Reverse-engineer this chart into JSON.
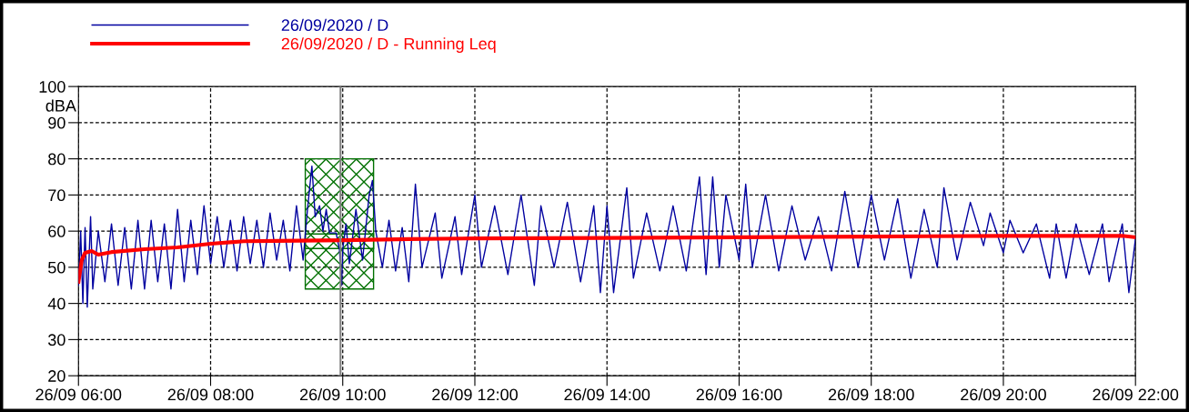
{
  "chart_data": {
    "type": "line",
    "ylabel": "dBA",
    "xlim": [
      "2020-09-26T06:00",
      "2020-09-26T22:00"
    ],
    "ylim": [
      20,
      100
    ],
    "xticks": [
      {
        "value": "2020-09-26T06:00",
        "label": "26/09 06:00"
      },
      {
        "value": "2020-09-26T08:00",
        "label": "26/09 08:00"
      },
      {
        "value": "2020-09-26T10:00",
        "label": "26/09 10:00"
      },
      {
        "value": "2020-09-26T12:00",
        "label": "26/09 12:00"
      },
      {
        "value": "2020-09-26T14:00",
        "label": "26/09 14:00"
      },
      {
        "value": "2020-09-26T16:00",
        "label": "26/09 16:00"
      },
      {
        "value": "2020-09-26T18:00",
        "label": "26/09 18:00"
      },
      {
        "value": "2020-09-26T20:00",
        "label": "26/09 20:00"
      },
      {
        "value": "2020-09-26T22:00",
        "label": "26/09 22:00"
      }
    ],
    "yticks": [
      20,
      30,
      40,
      50,
      60,
      70,
      80,
      90,
      100
    ],
    "grid": true,
    "legend": "top left",
    "marker": "none",
    "line_style": "solid",
    "series": [
      {
        "name": "26/09/2020 / D",
        "color": "#0000a0",
        "x": [
          "2020-09-26T06:00",
          "2020-09-26T06:02",
          "2020-09-26T06:04",
          "2020-09-26T06:06",
          "2020-09-26T06:08",
          "2020-09-26T06:11",
          "2020-09-26T06:13",
          "2020-09-26T06:18",
          "2020-09-26T06:24",
          "2020-09-26T06:30",
          "2020-09-26T06:36",
          "2020-09-26T06:42",
          "2020-09-26T06:48",
          "2020-09-26T06:54",
          "2020-09-26T07:00",
          "2020-09-26T07:06",
          "2020-09-26T07:12",
          "2020-09-26T07:18",
          "2020-09-26T07:24",
          "2020-09-26T07:30",
          "2020-09-26T07:36",
          "2020-09-26T07:42",
          "2020-09-26T07:48",
          "2020-09-26T07:54",
          "2020-09-26T08:00",
          "2020-09-26T08:06",
          "2020-09-26T08:12",
          "2020-09-26T08:18",
          "2020-09-26T08:24",
          "2020-09-26T08:30",
          "2020-09-26T08:36",
          "2020-09-26T08:42",
          "2020-09-26T08:48",
          "2020-09-26T08:54",
          "2020-09-26T09:00",
          "2020-09-26T09:06",
          "2020-09-26T09:12",
          "2020-09-26T09:18",
          "2020-09-26T09:24",
          "2020-09-26T09:28",
          "2020-09-26T09:32",
          "2020-09-26T09:35",
          "2020-09-26T09:39",
          "2020-09-26T09:42",
          "2020-09-26T09:45",
          "2020-09-26T09:48",
          "2020-09-26T09:54",
          "2020-09-26T09:57",
          "2020-09-26T09:59",
          "2020-09-26T10:00",
          "2020-09-26T10:03",
          "2020-09-26T10:06",
          "2020-09-26T10:12",
          "2020-09-26T10:18",
          "2020-09-26T10:24",
          "2020-09-26T10:27",
          "2020-09-26T10:30",
          "2020-09-26T10:36",
          "2020-09-26T10:42",
          "2020-09-26T10:48",
          "2020-09-26T10:54",
          "2020-09-26T11:00",
          "2020-09-26T11:06",
          "2020-09-26T11:12",
          "2020-09-26T11:24",
          "2020-09-26T11:30",
          "2020-09-26T11:42",
          "2020-09-26T11:48",
          "2020-09-26T12:00",
          "2020-09-26T12:06",
          "2020-09-26T12:18",
          "2020-09-26T12:30",
          "2020-09-26T12:42",
          "2020-09-26T12:54",
          "2020-09-26T13:00",
          "2020-09-26T13:12",
          "2020-09-26T13:24",
          "2020-09-26T13:36",
          "2020-09-26T13:48",
          "2020-09-26T13:54",
          "2020-09-26T14:00",
          "2020-09-26T14:06",
          "2020-09-26T14:18",
          "2020-09-26T14:24",
          "2020-09-26T14:36",
          "2020-09-26T14:48",
          "2020-09-26T15:00",
          "2020-09-26T15:12",
          "2020-09-26T15:24",
          "2020-09-26T15:30",
          "2020-09-26T15:36",
          "2020-09-26T15:42",
          "2020-09-26T15:48",
          "2020-09-26T16:00",
          "2020-09-26T16:06",
          "2020-09-26T16:12",
          "2020-09-26T16:24",
          "2020-09-26T16:36",
          "2020-09-26T16:48",
          "2020-09-26T17:00",
          "2020-09-26T17:12",
          "2020-09-26T17:24",
          "2020-09-26T17:36",
          "2020-09-26T17:48",
          "2020-09-26T18:00",
          "2020-09-26T18:12",
          "2020-09-26T18:24",
          "2020-09-26T18:36",
          "2020-09-26T18:48",
          "2020-09-26T19:00",
          "2020-09-26T19:06",
          "2020-09-26T19:18",
          "2020-09-26T19:30",
          "2020-09-26T19:42",
          "2020-09-26T19:48",
          "2020-09-26T20:00",
          "2020-09-26T20:06",
          "2020-09-26T20:18",
          "2020-09-26T20:30",
          "2020-09-26T20:42",
          "2020-09-26T20:48",
          "2020-09-26T20:57",
          "2020-09-26T21:06",
          "2020-09-26T21:18",
          "2020-09-26T21:30",
          "2020-09-26T21:36",
          "2020-09-26T21:48",
          "2020-09-26T21:54",
          "2020-09-26T22:00"
        ],
        "values": [
          45,
          60,
          40,
          61,
          39,
          64,
          44,
          60,
          46,
          62,
          45,
          61,
          44,
          63,
          44,
          63,
          46,
          62,
          44,
          66,
          46,
          63,
          48,
          67,
          51,
          64,
          50,
          63,
          49,
          64,
          51,
          63,
          50,
          65,
          52,
          63,
          49,
          67,
          52,
          66,
          78,
          64,
          67,
          60,
          66,
          59.5,
          59.5,
          55,
          45,
          55,
          62,
          51,
          66,
          52,
          70,
          74,
          60,
          50,
          63,
          49,
          61,
          46,
          73,
          50,
          65,
          47,
          64,
          48,
          70,
          50,
          67,
          48,
          70,
          45,
          67,
          50,
          68,
          46,
          67,
          43,
          67,
          43,
          72,
          47,
          65,
          49,
          67,
          49,
          75,
          48,
          75,
          50,
          70,
          52,
          73,
          50,
          70,
          49,
          67,
          52,
          64,
          49,
          71,
          50,
          70,
          52,
          69,
          47,
          66,
          50,
          72,
          52,
          68,
          56,
          65,
          54,
          63,
          54,
          62,
          47,
          62,
          47,
          62,
          48,
          62,
          46,
          62,
          43,
          58
        ]
      },
      {
        "name": "26/09/2020 / D - Running Leq",
        "color": "#ff0000",
        "x": [
          "2020-09-26T06:00",
          "2020-09-26T06:03",
          "2020-09-26T06:06",
          "2020-09-26T06:12",
          "2020-09-26T06:18",
          "2020-09-26T06:30",
          "2020-09-26T07:00",
          "2020-09-26T07:30",
          "2020-09-26T08:00",
          "2020-09-26T08:30",
          "2020-09-26T09:00",
          "2020-09-26T10:00",
          "2020-09-26T11:00",
          "2020-09-26T12:00",
          "2020-09-26T14:00",
          "2020-09-26T16:00",
          "2020-09-26T18:00",
          "2020-09-26T20:00",
          "2020-09-26T21:48",
          "2020-09-26T22:00"
        ],
        "values": [
          46,
          52,
          54,
          54.5,
          53.5,
          54.2,
          55,
          55.5,
          56.5,
          57.2,
          57.3,
          57.5,
          57.8,
          58,
          58.1,
          58.3,
          58.5,
          58.7,
          58.7,
          58.3
        ]
      }
    ],
    "ref_lines": [
      {
        "axis": "x",
        "value": "2020-09-26T09:58",
        "color": "#808080"
      }
    ],
    "bands": [
      {
        "axis": "x",
        "from": "2020-09-26T09:26",
        "to": "2020-09-26T10:28",
        "color": "#007000"
      }
    ]
  }
}
